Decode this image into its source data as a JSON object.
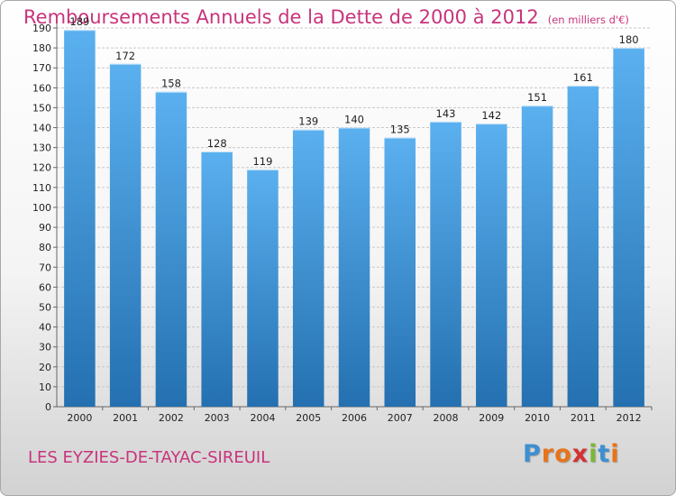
{
  "header": {
    "title": "Remboursements Annuels de la Dette de 2000 à 2012",
    "unit": "(en milliers d'€)"
  },
  "footer": {
    "commune": "LES EYZIES-DE-TAYAC-SIREUIL",
    "logo_letters": [
      "P",
      "r",
      "o",
      "x",
      "i",
      "t",
      "i"
    ],
    "logo_colors": [
      "#3d8fd1",
      "#e8731a",
      "#e8731a",
      "#d43131",
      "#7ab834",
      "#3d8fd1",
      "#e8731a"
    ]
  },
  "colors": {
    "title": "#c8347c",
    "bar_top": "#5bb0ef",
    "bar_bottom": "#2470b0",
    "grid": "#c8c8c8"
  },
  "chart_data": {
    "type": "bar",
    "categories": [
      "2000",
      "2001",
      "2002",
      "2003",
      "2004",
      "2005",
      "2006",
      "2007",
      "2008",
      "2009",
      "2010",
      "2011",
      "2012"
    ],
    "values": [
      189,
      172,
      158,
      128,
      119,
      139,
      140,
      135,
      143,
      142,
      151,
      161,
      180
    ],
    "title": "Remboursements Annuels de la Dette de 2000 à 2012",
    "xlabel": "",
    "ylabel": "",
    "ylim": [
      0,
      190
    ],
    "ytick_step": 10,
    "grid": true,
    "legend": "none"
  }
}
